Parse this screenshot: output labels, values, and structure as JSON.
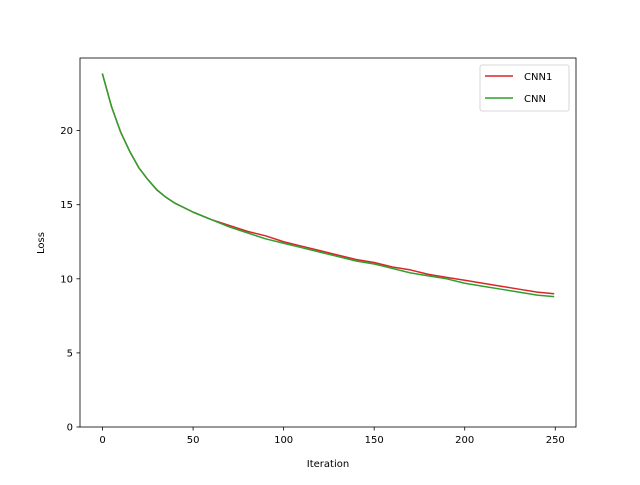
{
  "chart_data": {
    "type": "line",
    "title": "",
    "xlabel": "Iteration",
    "ylabel": "Loss",
    "xlim": [
      -12.45,
      261.45
    ],
    "ylim": [
      0,
      24.9
    ],
    "xticks": [
      0,
      50,
      100,
      150,
      200,
      250
    ],
    "yticks": [
      0,
      5,
      10,
      15,
      20
    ],
    "grid": false,
    "legend": "top-right",
    "series": [
      {
        "name": "CNN1",
        "color": "#d62728",
        "x": [
          0,
          5,
          10,
          15,
          20,
          25,
          30,
          35,
          40,
          50,
          60,
          70,
          80,
          90,
          100,
          110,
          120,
          130,
          140,
          150,
          160,
          170,
          180,
          190,
          200,
          210,
          220,
          230,
          240,
          249
        ],
        "y": [
          23.8,
          21.6,
          19.9,
          18.6,
          17.5,
          16.7,
          16.0,
          15.5,
          15.1,
          14.5,
          14.0,
          13.6,
          13.2,
          12.9,
          12.5,
          12.2,
          11.9,
          11.6,
          11.3,
          11.1,
          10.8,
          10.6,
          10.3,
          10.1,
          9.9,
          9.7,
          9.5,
          9.3,
          9.1,
          9.0
        ]
      },
      {
        "name": "CNN",
        "color": "#2ca02c",
        "x": [
          0,
          5,
          10,
          15,
          20,
          25,
          30,
          35,
          40,
          50,
          60,
          70,
          80,
          90,
          100,
          110,
          120,
          130,
          140,
          150,
          160,
          170,
          180,
          190,
          200,
          210,
          220,
          230,
          240,
          249
        ],
        "y": [
          23.8,
          21.6,
          19.9,
          18.6,
          17.5,
          16.7,
          16.0,
          15.5,
          15.1,
          14.5,
          14.0,
          13.5,
          13.1,
          12.7,
          12.4,
          12.1,
          11.8,
          11.5,
          11.2,
          11.0,
          10.7,
          10.4,
          10.2,
          10.0,
          9.7,
          9.5,
          9.3,
          9.1,
          8.9,
          8.8
        ]
      }
    ]
  }
}
